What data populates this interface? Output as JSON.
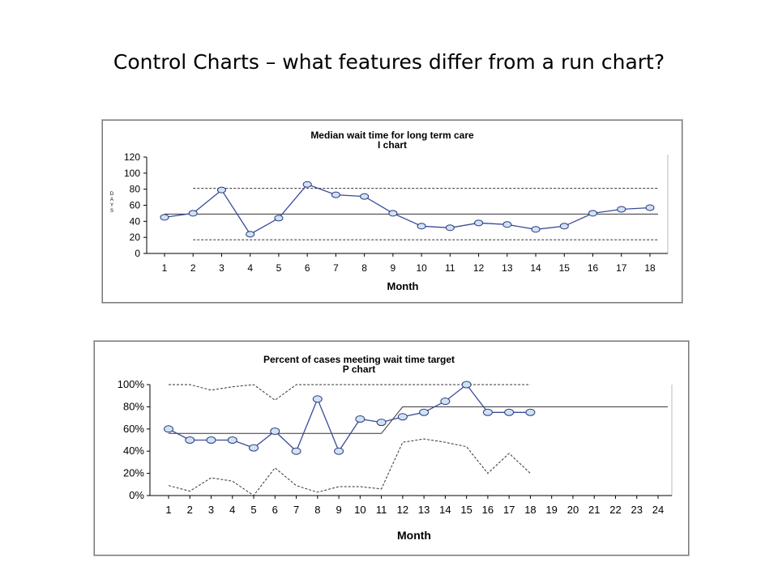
{
  "slide": {
    "title": "Control Charts – what features differ from a run chart?"
  },
  "colors": {
    "line": "#3a4a9a",
    "marker_fill": "#cfe3f5",
    "marker_stroke": "#2a3a7a",
    "limit_line": "#333333",
    "center_line": "#333333"
  },
  "chart_data": [
    {
      "type": "line",
      "title": "Median wait time for long term care",
      "subtitle": "I chart",
      "xlabel": "Month",
      "ylabel": "DAYS",
      "x": [
        1,
        2,
        3,
        4,
        5,
        6,
        7,
        8,
        9,
        10,
        11,
        12,
        13,
        14,
        15,
        16,
        17,
        18
      ],
      "ylim": [
        0,
        120
      ],
      "yticks": [
        "0",
        "20",
        "40",
        "60",
        "80",
        "100",
        "120"
      ],
      "series": [
        {
          "values": [
            45,
            50,
            79,
            24,
            44,
            86,
            73,
            71,
            50,
            34,
            32,
            38,
            36,
            30,
            34,
            50,
            55,
            57
          ]
        }
      ],
      "center_line": {
        "from": 1,
        "to": 18,
        "value": 49
      },
      "upper_limit": {
        "from": 2,
        "to": 18,
        "value": 81
      },
      "lower_limit": {
        "from": 2,
        "to": 18,
        "value": 17
      },
      "grid": false
    },
    {
      "type": "line",
      "title": "Percent of cases meeting wait time target",
      "subtitle": "P chart",
      "xlabel": "Month",
      "x": [
        1,
        2,
        3,
        4,
        5,
        6,
        7,
        8,
        9,
        10,
        11,
        12,
        13,
        14,
        15,
        16,
        17,
        18,
        19,
        20,
        21,
        22,
        23,
        24
      ],
      "ylim": [
        0,
        100
      ],
      "yticks": [
        "0%",
        "20%",
        "40%",
        "60%",
        "80%",
        "100%"
      ],
      "series": [
        {
          "x": [
            1,
            2,
            3,
            4,
            5,
            6,
            7,
            8,
            9,
            10,
            11,
            12,
            13,
            14,
            15,
            16,
            17,
            18
          ],
          "values": [
            60,
            50,
            50,
            50,
            43,
            58,
            40,
            87,
            40,
            69,
            66,
            71,
            75,
            85,
            100,
            75,
            75,
            75
          ]
        }
      ],
      "center_line": [
        {
          "x": [
            1,
            11,
            12,
            24
          ],
          "values": [
            56,
            56,
            80,
            80
          ]
        }
      ],
      "upper_limit": {
        "x": [
          1,
          2,
          3,
          4,
          5,
          6,
          7,
          8,
          9,
          10,
          11,
          12,
          13,
          14,
          15,
          16,
          17,
          18
        ],
        "values": [
          100,
          100,
          95,
          98,
          100,
          86,
          100,
          100,
          100,
          100,
          100,
          100,
          100,
          100,
          100,
          100,
          100,
          100
        ]
      },
      "lower_limit": {
        "x": [
          1,
          2,
          3,
          4,
          5,
          6,
          7,
          8,
          9,
          10,
          11,
          12,
          13,
          14,
          15,
          16,
          17,
          18
        ],
        "values": [
          9,
          4,
          16,
          13,
          0,
          25,
          9,
          3,
          8,
          8,
          6,
          48,
          51,
          48,
          44,
          20,
          38,
          20
        ]
      },
      "grid": false
    }
  ]
}
